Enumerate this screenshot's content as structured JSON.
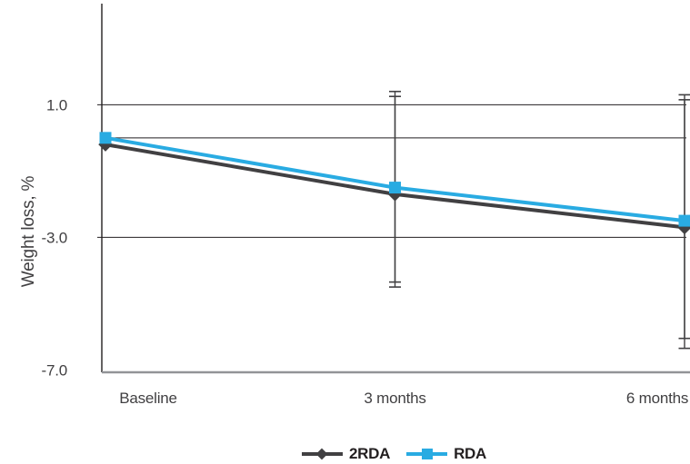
{
  "chart_data": {
    "type": "line",
    "title": "",
    "ylabel": "Weight loss, %",
    "xlabel": "",
    "categories": [
      "Baseline",
      "3 months",
      "6 months"
    ],
    "series": [
      {
        "name": "2RDA",
        "color": "#414042",
        "marker": "diamond",
        "values": [
          -0.2,
          -1.7,
          -2.7
        ]
      },
      {
        "name": "RDA",
        "color": "#29abe2",
        "marker": "square",
        "values": [
          0.0,
          -1.5,
          -2.5
        ]
      }
    ],
    "error_bars": [
      {
        "series": "2RDA",
        "category": "3 months",
        "high": 1.4,
        "low": -4.5
      },
      {
        "series": "RDA",
        "category": "3 months",
        "high": 1.25,
        "low": -4.35
      },
      {
        "series": "2RDA",
        "category": "6 months",
        "high": 1.3,
        "low": -6.35
      },
      {
        "series": "RDA",
        "category": "6 months",
        "high": 1.15,
        "low": -6.05
      }
    ],
    "y_ticks": [
      {
        "label": "1.0",
        "value": 1.0
      },
      {
        "label": "-3.0",
        "value": -3.0
      },
      {
        "label": "-7.0",
        "value": -7.0
      }
    ],
    "gridline_values": [
      1.0,
      0.0,
      -3.0
    ],
    "ylim": [
      -7.1,
      4.05
    ],
    "grid": "horizontal",
    "legend_position": "bottom-center"
  },
  "colors": {
    "gridline": "#231f20",
    "axis_bottom": "#929497",
    "error_bar": "#414042",
    "text": "#414042",
    "legend_text": "#231f20",
    "background": "#ffffff"
  }
}
